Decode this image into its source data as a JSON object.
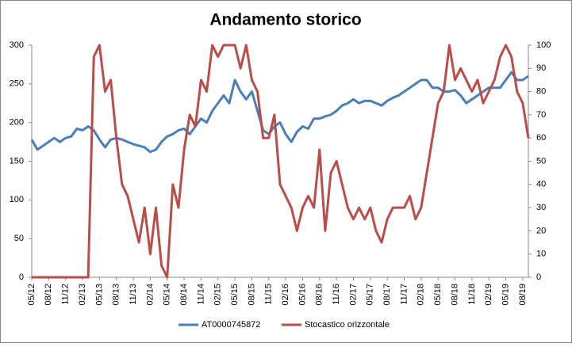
{
  "chart_data": {
    "type": "line",
    "title": "Andamento storico",
    "categories": [
      "05/12",
      null,
      null,
      "08/12",
      null,
      null,
      "11/12",
      null,
      null,
      "02/13",
      null,
      null,
      "05/13",
      null,
      null,
      "08/13",
      null,
      null,
      "11/13",
      null,
      null,
      "02/14",
      null,
      null,
      "05/14",
      null,
      null,
      "08/14",
      null,
      null,
      "11/14",
      null,
      null,
      "02/15",
      null,
      null,
      "05/15",
      null,
      null,
      "08/15",
      null,
      null,
      "11/15",
      null,
      null,
      "02/16",
      null,
      null,
      "05/16",
      null,
      null,
      "08/16",
      null,
      null,
      "11/16",
      null,
      null,
      "02/17",
      null,
      null,
      "05/17",
      null,
      null,
      "08/17",
      null,
      null,
      "11/17",
      null,
      null,
      "02/18",
      null,
      null,
      "05/18",
      null,
      null,
      "08/18",
      null,
      null,
      "11/18",
      null,
      null,
      "02/19",
      null,
      null,
      "05/19",
      null,
      null,
      "08/19",
      null
    ],
    "series": [
      {
        "name": "AT0000745872",
        "color": "#4a7ebb",
        "axis": "y",
        "values": [
          178,
          165,
          170,
          175,
          180,
          175,
          180,
          182,
          192,
          190,
          195,
          190,
          178,
          168,
          178,
          180,
          178,
          175,
          172,
          170,
          168,
          162,
          165,
          175,
          182,
          185,
          190,
          192,
          185,
          195,
          205,
          200,
          215,
          225,
          235,
          225,
          255,
          240,
          230,
          240,
          215,
          190,
          185,
          195,
          200,
          185,
          175,
          188,
          195,
          192,
          205,
          205,
          208,
          210,
          215,
          222,
          225,
          230,
          225,
          228,
          228,
          225,
          222,
          228,
          232,
          235,
          240,
          245,
          250,
          255,
          255,
          245,
          245,
          240,
          240,
          242,
          235,
          225,
          230,
          235,
          240,
          245,
          245,
          245,
          255,
          265,
          255,
          255,
          260
        ]
      },
      {
        "name": "Stocastico orizzontale",
        "color": "#be4b48",
        "axis": "y2",
        "values": [
          0,
          0,
          0,
          0,
          0,
          0,
          0,
          0,
          0,
          0,
          0,
          95,
          100,
          80,
          85,
          60,
          40,
          35,
          25,
          15,
          30,
          10,
          30,
          5,
          0,
          40,
          30,
          55,
          70,
          65,
          85,
          80,
          100,
          95,
          100,
          100,
          100,
          90,
          100,
          85,
          80,
          60,
          60,
          70,
          40,
          35,
          30,
          20,
          30,
          35,
          30,
          55,
          20,
          45,
          50,
          40,
          30,
          25,
          30,
          25,
          30,
          20,
          15,
          25,
          30,
          30,
          30,
          35,
          25,
          30,
          45,
          60,
          75,
          80,
          100,
          85,
          90,
          85,
          80,
          85,
          75,
          80,
          85,
          95,
          100,
          95,
          80,
          75,
          60
        ]
      }
    ],
    "ylim": [
      0,
      300
    ],
    "yticks": [
      0,
      50,
      100,
      150,
      200,
      250,
      300
    ],
    "y2lim": [
      0,
      100
    ],
    "y2ticks": [
      0,
      10,
      20,
      30,
      40,
      50,
      60,
      70,
      80,
      90,
      100
    ],
    "legend": "bottom"
  }
}
